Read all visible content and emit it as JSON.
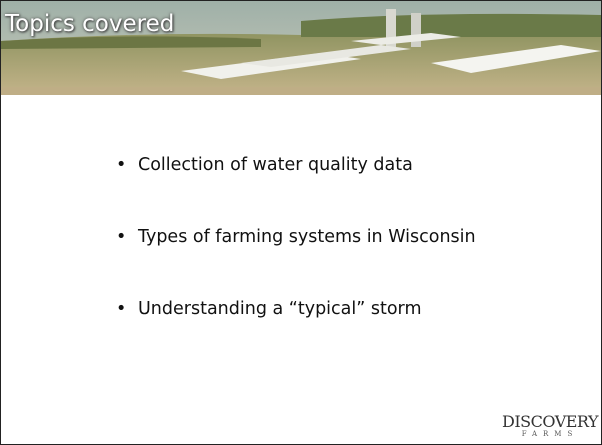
{
  "header": {
    "title": "Topics covered"
  },
  "bullets": [
    "Collection of water quality data",
    "Types of farming systems in Wisconsin",
    "Understanding a “typical” storm"
  ],
  "logo": {
    "name": "DISCOVERY",
    "subtitle": "FARMS"
  }
}
